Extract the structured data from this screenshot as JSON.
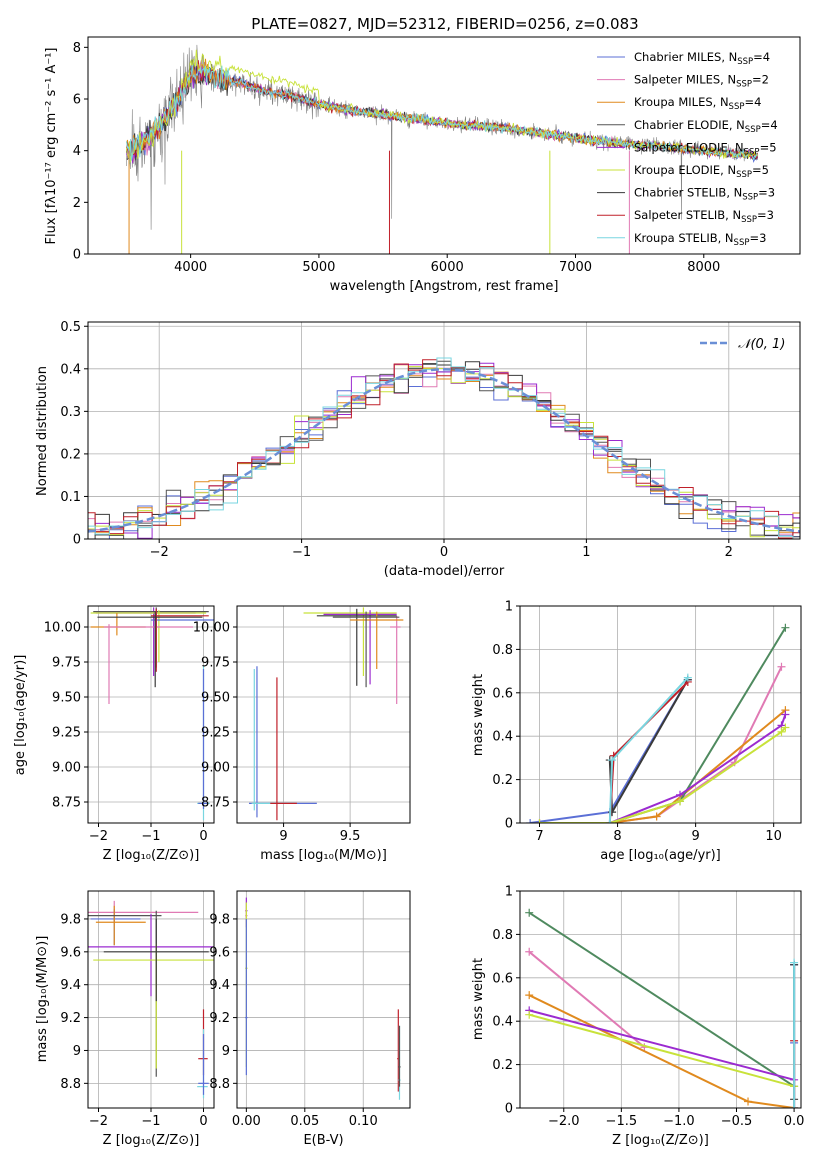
{
  "figure": {
    "title": "PLATE=0827, MJD=52312, FIBERID=0256, z=0.083"
  },
  "series_colors": [
    "#5b6fd6",
    "#e07ab4",
    "#e08a1e",
    "#555555",
    "#9b2bd0",
    "#c8e23a",
    "#3a3a3a",
    "#c0202a",
    "#79d6e0"
  ],
  "legend_models": [
    {
      "pre": "Chabrier MILES, N",
      "n": "4"
    },
    {
      "pre": "Salpeter MILES, N",
      "n": "2"
    },
    {
      "pre": "Kroupa MILES, N",
      "n": "4"
    },
    {
      "pre": "Chabrier ELODIE, N",
      "n": "4"
    },
    {
      "pre": "Salpeter ELODIE, N",
      "n": "5"
    },
    {
      "pre": "Kroupa ELODIE, N",
      "n": "5"
    },
    {
      "pre": "Chabrier STELIB, N",
      "n": "3"
    },
    {
      "pre": "Salpeter STELIB, N",
      "n": "3"
    },
    {
      "pre": "Kroupa STELIB, N",
      "n": "3"
    }
  ],
  "chart_data": [
    {
      "id": "spectrum",
      "type": "line",
      "title": "PLATE=0827, MJD=52312, FIBERID=0256, z=0.083",
      "xlabel": "wavelength [Angstrom, rest frame]",
      "ylabel": "Flux [fλ10⁻¹⁷ erg cm⁻² s⁻¹ A⁻¹]",
      "xlim": [
        3200,
        8750
      ],
      "ylim": [
        0,
        8.4
      ],
      "xticks": [
        4000,
        5000,
        6000,
        7000,
        8000
      ],
      "yticks": [
        0,
        2,
        4,
        6,
        8
      ],
      "grid": false,
      "legend_placement": "right",
      "data_color": "#808080",
      "continuum": {
        "x": [
          3500,
          3600,
          3700,
          3800,
          3900,
          4000,
          4100,
          4200,
          4400,
          4600,
          4800,
          5000,
          5200,
          5500,
          5800,
          6100,
          6400,
          6700,
          7000,
          7300,
          7600,
          7900,
          8200,
          8400
        ],
        "y": [
          4.0,
          4.2,
          4.6,
          5.2,
          6.0,
          6.9,
          7.0,
          6.8,
          6.6,
          6.3,
          6.1,
          5.8,
          5.6,
          5.4,
          5.2,
          5.0,
          4.9,
          4.7,
          4.5,
          4.3,
          4.2,
          4.05,
          3.9,
          3.8
        ]
      }
    },
    {
      "id": "residuals",
      "type": "line",
      "xlabel": "(data-model)/error",
      "ylabel": "Normed distribution",
      "xlim": [
        -2.5,
        2.5
      ],
      "ylim": [
        0,
        0.51
      ],
      "xticks": [
        -2,
        -1,
        0,
        1,
        2
      ],
      "yticks": [
        0.0,
        0.1,
        0.2,
        0.3,
        0.4,
        0.5
      ],
      "grid": true,
      "legend_placement": "top-right",
      "reference": {
        "name": "𝒩(0, 1)",
        "mu": 0,
        "sigma": 1,
        "color": "#6a8fd6"
      },
      "bin_width": 0.1
    },
    {
      "id": "age_vs_Z",
      "type": "scatter",
      "xlabel": "Z [log₁₀(Z/Z⊙)]",
      "ylabel": "age  [log₁₀(age/yr)]",
      "xlim": [
        -2.2,
        0.2
      ],
      "ylim": [
        8.6,
        10.15
      ],
      "xticks": [
        -2,
        -1,
        0
      ],
      "yticks": [
        8.75,
        9.0,
        9.25,
        9.5,
        9.75,
        10.0
      ],
      "ytick_labels": [
        "8.75",
        "9.00",
        "9.25",
        "9.50",
        "9.75",
        "10.00"
      ],
      "grid": true
    },
    {
      "id": "age_vs_mass",
      "type": "scatter",
      "xlabel": "mass [log₁₀(M/M⊙)]",
      "xlim": [
        8.65,
        9.95
      ],
      "ylim": [
        8.6,
        10.15
      ],
      "xticks": [
        9.0,
        9.5
      ],
      "yticks": [
        8.75,
        9.0,
        9.25,
        9.5,
        9.75,
        10.0
      ],
      "ytick_labels": [
        "8.75",
        "9.00",
        "9.25",
        "9.50",
        "9.75",
        "10.00"
      ],
      "grid": true
    },
    {
      "id": "weight_vs_age",
      "type": "line",
      "xlabel": "age  [log₁₀(age/yr)]",
      "ylabel": "mass weight",
      "xlim": [
        6.75,
        10.35
      ],
      "ylim": [
        0,
        1.0
      ],
      "xticks": [
        7,
        8,
        9,
        10
      ],
      "yticks": [
        0.0,
        0.2,
        0.4,
        0.6,
        0.8,
        1.0
      ],
      "grid": true,
      "series": [
        {
          "x": [
            6.88,
            7.9,
            8.9
          ],
          "y": [
            0.0,
            0.05,
            0.66
          ]
        },
        {
          "x": [
            7.9,
            8.5,
            9.5,
            10.1
          ],
          "y": [
            0.0,
            0.03,
            0.28,
            0.72
          ]
        },
        {
          "x": [
            7.9,
            8.5,
            10.15
          ],
          "y": [
            0.0,
            0.03,
            0.52
          ]
        },
        {
          "x": [
            7.9,
            8.8,
            10.15
          ],
          "y": [
            0.0,
            0.1,
            0.9
          ]
        },
        {
          "x": [
            7.0,
            7.9,
            8.8,
            10.1,
            10.15
          ],
          "y": [
            0.0,
            0.0,
            0.13,
            0.45,
            0.5
          ]
        },
        {
          "x": [
            7.0,
            7.9,
            8.8,
            10.1,
            10.15
          ],
          "y": [
            0.0,
            0.0,
            0.1,
            0.42,
            0.44
          ]
        },
        {
          "x": [
            7.9,
            7.93,
            8.9
          ],
          "y": [
            0.29,
            0.05,
            0.66
          ]
        },
        {
          "x": [
            7.9,
            7.95,
            8.9
          ],
          "y": [
            0.0,
            0.31,
            0.65
          ]
        },
        {
          "x": [
            7.9,
            7.93,
            8.9
          ],
          "y": [
            0.0,
            0.29,
            0.67
          ]
        }
      ]
    },
    {
      "id": "mass_vs_Z",
      "type": "scatter",
      "xlabel": "Z [log₁₀(Z/Z⊙)]",
      "ylabel": "mass [log₁₀(M/M⊙)]",
      "xlim": [
        -2.2,
        0.2
      ],
      "ylim": [
        8.65,
        9.97
      ],
      "xticks": [
        -2,
        -1,
        0
      ],
      "yticks": [
        8.8,
        9.0,
        9.2,
        9.4,
        9.6,
        9.8
      ],
      "grid": true
    },
    {
      "id": "mass_vs_ebv",
      "type": "scatter",
      "xlabel": "E(B-V)",
      "xlim": [
        -0.008,
        0.14
      ],
      "ylim": [
        8.65,
        9.97
      ],
      "xticks": [
        0.0,
        0.05,
        0.1
      ],
      "xtick_labels": [
        "0.00",
        "0.05",
        "0.10"
      ],
      "yticks": [
        8.8,
        9.0,
        9.2,
        9.4,
        9.6,
        9.8
      ],
      "grid": true
    },
    {
      "id": "weight_vs_Z",
      "type": "line",
      "xlabel": "Z [log₁₀(Z/Z⊙)]",
      "ylabel": "mass weight",
      "xlim": [
        -2.38,
        0.06
      ],
      "ylim": [
        0,
        1.0
      ],
      "xticks": [
        -2.0,
        -1.5,
        -1.0,
        -0.5,
        0.0
      ],
      "xtick_labels": [
        "−2.0",
        "−1.5",
        "−1.0",
        "−0.5",
        "0.0"
      ],
      "yticks": [
        0.0,
        0.2,
        0.4,
        0.6,
        0.8,
        1.0
      ],
      "grid": true,
      "series": [
        {
          "x": [
            0.0,
            0.0,
            0.0
          ],
          "y": [
            0.0,
            0.3,
            0.66
          ]
        },
        {
          "x": [
            -2.3,
            -1.3
          ],
          "y": [
            0.72,
            0.28
          ]
        },
        {
          "x": [
            -2.3,
            -0.4,
            0.0
          ],
          "y": [
            0.52,
            0.03,
            0.0
          ]
        },
        {
          "x": [
            -2.3,
            0.0
          ],
          "y": [
            0.9,
            0.1
          ]
        },
        {
          "x": [
            -2.3,
            0.0
          ],
          "y": [
            0.45,
            0.13
          ]
        },
        {
          "x": [
            -2.3,
            0.0
          ],
          "y": [
            0.43,
            0.1
          ]
        },
        {
          "x": [
            0.0,
            0.0
          ],
          "y": [
            0.04,
            0.66
          ]
        },
        {
          "x": [
            0.0,
            0.0
          ],
          "y": [
            0.0,
            0.31
          ]
        },
        {
          "x": [
            0.0,
            0.0
          ],
          "y": [
            0.0,
            0.67
          ]
        }
      ]
    }
  ]
}
